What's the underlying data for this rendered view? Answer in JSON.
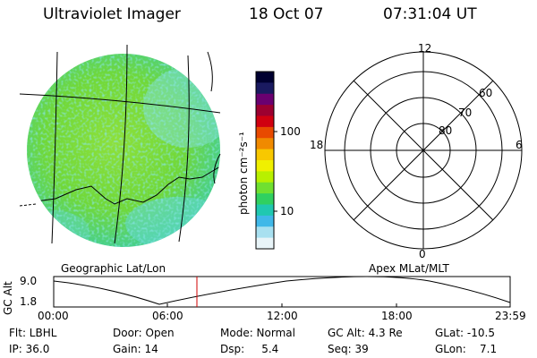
{
  "header": {
    "instrument": "Ultraviolet Imager",
    "date": "18 Oct 07",
    "time": "07:31:04 UT"
  },
  "colorbar": {
    "unit_label": "photon cm⁻²s⁻¹",
    "ticks": [
      "100",
      "10"
    ],
    "colors": [
      "#000030",
      "#1a1a60",
      "#6a0070",
      "#9c0030",
      "#d00010",
      "#e84a00",
      "#f08a00",
      "#f8c800",
      "#f0f000",
      "#b8f000",
      "#70e030",
      "#30d060",
      "#20c8b0",
      "#40b8e8",
      "#a8e0f0",
      "#e8f4f8"
    ]
  },
  "map_panel": {
    "caption": "Geographic Lat/Lon"
  },
  "polar_panel": {
    "caption": "Apex MLat/MLT",
    "mlt_labels": {
      "top": "12",
      "left": "18",
      "right": "6",
      "bottom": "0"
    },
    "lat_labels": [
      "60",
      "70",
      "80"
    ]
  },
  "altitude_plot": {
    "ylabel": "GC Alt",
    "yticks": [
      "9.0",
      "1.8"
    ],
    "xticks": [
      "00:00",
      "06:00",
      "12:00",
      "18:00",
      "23:59"
    ],
    "marker_time": "07:31"
  },
  "status": {
    "filter": "Flt: LBHL",
    "door": "Door: Open",
    "mode": "Mode: Normal",
    "gc_alt": "GC Alt: 4.3 Re",
    "glat": "GLat: -10.5",
    "ip": "IP: 36.0",
    "gain": "Gain: 14",
    "dsp": "Dsp:     5.4",
    "seq": "Seq: 39",
    "glon": "GLon:    7.1"
  }
}
